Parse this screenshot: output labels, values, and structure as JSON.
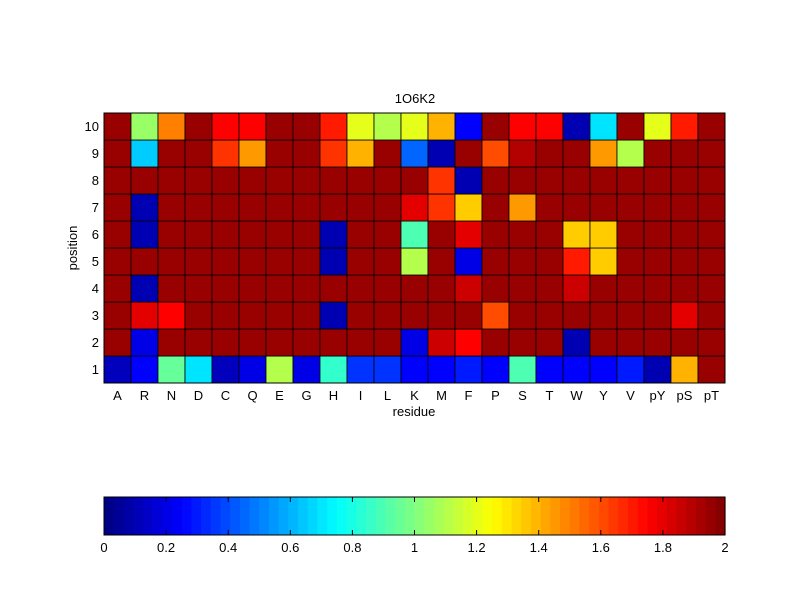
{
  "chart_data": {
    "type": "heatmap",
    "title": "1O6K2",
    "xlabel": "residue",
    "ylabel": "position",
    "x_categories": [
      "A",
      "R",
      "N",
      "D",
      "C",
      "Q",
      "E",
      "G",
      "H",
      "I",
      "L",
      "K",
      "M",
      "F",
      "P",
      "S",
      "T",
      "W",
      "Y",
      "V",
      "pY",
      "pS",
      "pT"
    ],
    "y_categories": [
      "1",
      "2",
      "3",
      "4",
      "5",
      "6",
      "7",
      "8",
      "9",
      "10"
    ],
    "values": [
      [
        0.12,
        0.25,
        0.95,
        0.7,
        0.12,
        0.2,
        1.1,
        0.2,
        0.85,
        0.35,
        0.35,
        0.25,
        0.25,
        0.3,
        0.25,
        0.9,
        0.25,
        0.25,
        0.25,
        0.3,
        0.1,
        1.4,
        1.95
      ],
      [
        1.95,
        0.2,
        1.95,
        1.95,
        1.95,
        1.95,
        1.95,
        1.95,
        1.95,
        1.95,
        1.95,
        0.2,
        1.85,
        1.75,
        1.95,
        1.95,
        1.95,
        0.1,
        1.95,
        1.95,
        1.95,
        1.95,
        1.95
      ],
      [
        1.95,
        1.8,
        1.75,
        1.95,
        1.95,
        1.95,
        1.95,
        1.95,
        0.1,
        1.95,
        1.95,
        1.95,
        1.95,
        1.95,
        1.6,
        1.95,
        1.95,
        1.95,
        1.95,
        1.95,
        1.95,
        1.8,
        1.95
      ],
      [
        1.95,
        0.1,
        1.95,
        1.95,
        1.95,
        1.95,
        1.95,
        1.95,
        1.95,
        1.95,
        1.95,
        1.95,
        1.95,
        1.85,
        1.95,
        1.95,
        1.95,
        1.85,
        1.95,
        1.95,
        1.95,
        1.95,
        1.95
      ],
      [
        1.95,
        1.95,
        1.95,
        1.95,
        1.95,
        1.95,
        1.95,
        1.95,
        0.1,
        1.95,
        1.95,
        1.1,
        1.95,
        0.2,
        1.95,
        1.95,
        1.95,
        1.7,
        1.35,
        1.95,
        1.95,
        1.95,
        1.95
      ],
      [
        1.95,
        0.1,
        1.95,
        1.95,
        1.95,
        1.95,
        1.95,
        1.95,
        0.1,
        1.95,
        1.95,
        0.9,
        1.95,
        1.8,
        1.95,
        1.95,
        1.95,
        1.35,
        1.35,
        1.95,
        1.95,
        1.95,
        1.95
      ],
      [
        1.95,
        0.1,
        1.95,
        1.95,
        1.95,
        1.95,
        1.95,
        1.95,
        1.95,
        1.95,
        1.95,
        1.8,
        1.65,
        1.35,
        1.95,
        1.45,
        1.95,
        1.95,
        1.95,
        1.95,
        1.95,
        1.95,
        1.95
      ],
      [
        1.95,
        1.95,
        1.95,
        1.95,
        1.95,
        1.95,
        1.95,
        1.95,
        1.95,
        1.95,
        1.95,
        1.95,
        1.65,
        0.1,
        1.95,
        1.95,
        1.95,
        1.95,
        1.95,
        1.95,
        1.95,
        1.95,
        1.95
      ],
      [
        1.95,
        0.65,
        1.95,
        1.95,
        1.65,
        1.45,
        1.95,
        1.95,
        1.65,
        1.4,
        1.95,
        0.45,
        0.1,
        1.95,
        1.6,
        1.9,
        1.95,
        1.95,
        1.45,
        1.1,
        1.95,
        1.95,
        1.95
      ],
      [
        1.95,
        1.05,
        1.5,
        1.95,
        1.75,
        1.75,
        1.95,
        1.95,
        1.7,
        1.2,
        1.1,
        1.2,
        1.4,
        0.25,
        1.95,
        1.75,
        1.75,
        0.1,
        0.7,
        1.95,
        1.2,
        1.7,
        1.95
      ]
    ],
    "colormap": "jet",
    "clim": [
      0,
      2
    ],
    "colorbar": {
      "ticks": [
        0,
        0.2,
        0.4,
        0.6,
        0.8,
        1,
        1.2,
        1.4,
        1.6,
        1.8,
        2
      ],
      "tick_labels": [
        "0",
        "0.2",
        "0.4",
        "0.6",
        "0.8",
        "1",
        "1.2",
        "1.4",
        "1.6",
        "1.8",
        "2"
      ],
      "placement": "bottom"
    }
  }
}
